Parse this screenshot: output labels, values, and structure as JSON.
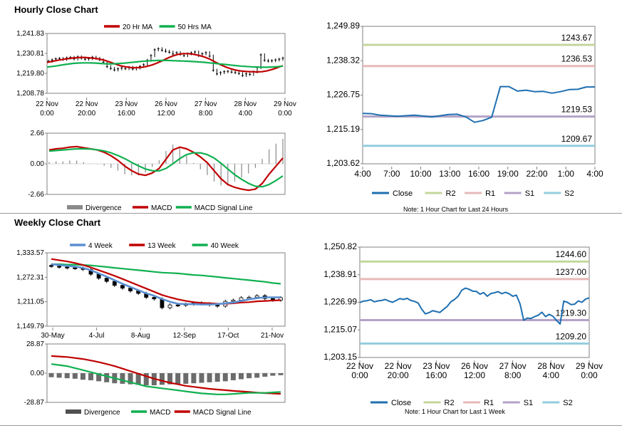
{
  "sections": {
    "hourly_title": "Hourly Close Chart",
    "weekly_title": "Weekly Close Chart"
  },
  "colors": {
    "red": "#c00000",
    "green": "#10b050",
    "blue": "#1f6fb0",
    "blue_light": "#5b8fd0",
    "gray_bar": "#8a8a8a",
    "r2": "#c3d69b",
    "r1": "#e6b9b8",
    "s1": "#b3a2c7",
    "s2": "#93cddd",
    "grid": "#d9d9d9",
    "axis": "#808080"
  },
  "chart_data": [
    {
      "id": "hourly-price",
      "type": "line",
      "legend": [
        "20 Hr MA",
        "50 Hrs MA"
      ],
      "y_ticks": [
        "1,241.83",
        "1,230.81",
        "1,219.80",
        "1,208.78"
      ],
      "ylim": [
        1208.78,
        1241.83
      ],
      "x_ticks": [
        [
          "22 Nov",
          "0:00"
        ],
        [
          "22 Nov",
          "20:00"
        ],
        [
          "23 Nov",
          "16:00"
        ],
        [
          "26 Nov",
          "12:00"
        ],
        [
          "27 Nov",
          "8:00"
        ],
        [
          "28 Nov",
          "4:00"
        ],
        [
          "29 Nov",
          "0:00"
        ]
      ],
      "close": [
        1226.5,
        1227.2,
        1227.8,
        1228.0,
        1227.5,
        1228.3,
        1228.6,
        1227.8,
        1228.9,
        1228.2,
        1227.6,
        1227.9,
        1228.7,
        1228.1,
        1227.3,
        1226.0,
        1223.5,
        1222.5,
        1221.7,
        1222.3,
        1222.8,
        1222.4,
        1223.1,
        1222.2,
        1222.8,
        1223.6,
        1224.6,
        1227.0,
        1229.6,
        1232.8,
        1233.4,
        1232.6,
        1232.0,
        1231.5,
        1230.5,
        1231.2,
        1230.3,
        1229.6,
        1230.6,
        1231.1,
        1231.6,
        1229.6,
        1230.6,
        1231.2,
        1229.3,
        1221.5,
        1219.5,
        1220.2,
        1220.7,
        1220.9,
        1220.5,
        1220.2,
        1219.7,
        1218.6,
        1219.5,
        1219.2,
        1220.6,
        1223.0,
        1230.0,
        1227.0,
        1226.6,
        1226.8,
        1227.2,
        1227.6,
        1228.2
      ],
      "ma20": [
        1225.8,
        1226.4,
        1227.0,
        1227.5,
        1227.9,
        1228.3,
        1228.5,
        1228.6,
        1228.4,
        1228.1,
        1227.7,
        1227.0,
        1226.0,
        1225.0,
        1224.0,
        1223.4,
        1223.0,
        1222.9,
        1223.1,
        1223.6,
        1224.4,
        1225.5,
        1226.8,
        1228.2,
        1229.4,
        1230.3,
        1230.7,
        1230.7,
        1230.3,
        1229.7,
        1228.9,
        1227.7,
        1226.2,
        1224.7,
        1223.4,
        1222.4,
        1221.6,
        1221.1,
        1220.8,
        1220.7,
        1220.6,
        1220.7,
        1221.2,
        1222.0,
        1223.0,
        1224.1
      ],
      "ma50": [
        1223.3,
        1223.6,
        1224.0,
        1224.5,
        1224.9,
        1225.3,
        1225.5,
        1225.6,
        1225.6,
        1225.5,
        1225.3,
        1225.1,
        1225.0,
        1225.1,
        1225.3,
        1225.5,
        1225.8,
        1226.1,
        1226.4,
        1226.6,
        1226.8,
        1226.9,
        1226.9,
        1226.9,
        1226.8,
        1226.7,
        1226.6,
        1226.5,
        1226.3,
        1226.1,
        1225.9,
        1225.6,
        1225.3,
        1225.0,
        1224.7,
        1224.4,
        1224.1,
        1223.8,
        1223.6,
        1223.4,
        1223.3,
        1223.2,
        1223.2,
        1223.3,
        1223.5,
        1223.8
      ]
    },
    {
      "id": "hourly-macd",
      "type": "bar",
      "legend": [
        "Divergence",
        "MACD",
        "MACD Signal Line"
      ],
      "y_ticks": [
        "2.66",
        "0.00",
        "-2.66"
      ],
      "ylim": [
        -2.66,
        2.66
      ],
      "macd": [
        1.2,
        1.3,
        1.35,
        1.45,
        1.5,
        1.4,
        1.3,
        1.2,
        1.0,
        0.7,
        0.3,
        -0.2,
        -0.6,
        -0.9,
        -1.0,
        -0.8,
        -0.4,
        0.4,
        1.2,
        1.45,
        1.3,
        1.0,
        0.6,
        0.1,
        -0.6,
        -1.3,
        -1.8,
        -2.05,
        -2.2,
        -2.3,
        -2.2,
        -1.7,
        -0.9,
        -0.2,
        0.5
      ],
      "signal": [
        1.1,
        1.15,
        1.2,
        1.25,
        1.3,
        1.3,
        1.28,
        1.22,
        1.12,
        0.95,
        0.72,
        0.45,
        0.12,
        -0.18,
        -0.45,
        -0.6,
        -0.62,
        -0.4,
        0.0,
        0.45,
        0.8,
        0.95,
        0.95,
        0.8,
        0.5,
        0.05,
        -0.45,
        -0.95,
        -1.35,
        -1.7,
        -1.95,
        -2.0,
        -1.8,
        -1.45,
        -1.05
      ]
    },
    {
      "id": "hourly-pivot",
      "type": "line",
      "y_ticks": [
        "1,249.89",
        "1,238.32",
        "1,226.75",
        "1,215.19",
        "1,203.62"
      ],
      "ylim": [
        1203.62,
        1249.89
      ],
      "x_ticks": [
        "4:00",
        "7:00",
        "10:00",
        "13:00",
        "16:00",
        "19:00",
        "22:00",
        "1:00",
        "4:00"
      ],
      "levels": [
        {
          "name": "R2",
          "value": 1243.67,
          "label": "1243.67"
        },
        {
          "name": "R1",
          "value": 1236.53,
          "label": "1236.53"
        },
        {
          "name": "S1",
          "value": 1219.53,
          "label": "1219.53"
        },
        {
          "name": "S2",
          "value": 1209.67,
          "label": "1209.67"
        }
      ],
      "close": [
        1220.6,
        1220.5,
        1220.0,
        1219.8,
        1219.6,
        1219.8,
        1220.0,
        1219.7,
        1219.4,
        1219.8,
        1220.2,
        1220.3,
        1219.4,
        1217.6,
        1218.2,
        1219.3,
        1229.6,
        1229.6,
        1228.1,
        1228.4,
        1227.9,
        1228.0,
        1227.4,
        1227.9,
        1228.6,
        1228.7,
        1229.5,
        1229.5
      ],
      "legend": [
        "Close",
        "R2",
        "R1",
        "S1",
        "S2"
      ],
      "note": "Note: 1 Hour Chart for Last 24 Hours"
    },
    {
      "id": "weekly-price",
      "type": "line",
      "legend": [
        "4 Week",
        "13 Week",
        "40 Week"
      ],
      "y_ticks": [
        "1,333.57",
        "1,272.31",
        "1,211.05",
        "1,149.79"
      ],
      "ylim": [
        1149.79,
        1333.57
      ],
      "x_ticks": [
        "30-May",
        "4-Jul",
        "8-Aug",
        "12-Sep",
        "17-Oct",
        "21-Nov"
      ],
      "close": [
        1300,
        1298,
        1296,
        1295,
        1292,
        1280,
        1270,
        1262,
        1252,
        1245,
        1238,
        1232,
        1222,
        1218,
        1196,
        1203,
        1202,
        1205,
        1208,
        1206,
        1203,
        1200,
        1212,
        1215,
        1221,
        1222,
        1226,
        1219,
        1215,
        1221
      ],
      "ma4": [
        1305,
        1303,
        1301,
        1299,
        1296,
        1290,
        1282,
        1274,
        1265,
        1256,
        1248,
        1240,
        1232,
        1226,
        1218,
        1211,
        1206,
        1205,
        1205,
        1204,
        1204,
        1205,
        1207,
        1209,
        1213,
        1217,
        1220,
        1222,
        1222,
        1222
      ],
      "ma13": [
        1318,
        1315,
        1312,
        1308,
        1303,
        1297,
        1290,
        1283,
        1276,
        1268,
        1260,
        1252,
        1244,
        1236,
        1228,
        1222,
        1217,
        1213,
        1210,
        1208,
        1207,
        1206,
        1206,
        1207,
        1209,
        1210,
        1212,
        1213,
        1214,
        1215
      ],
      "ma40": [
        1305,
        1305,
        1304,
        1304,
        1303,
        1302,
        1300,
        1298,
        1296,
        1294,
        1292,
        1290,
        1288,
        1286,
        1284,
        1283,
        1282,
        1280,
        1278,
        1277,
        1275,
        1273,
        1271,
        1269,
        1267,
        1265,
        1263,
        1261,
        1258,
        1256
      ]
    },
    {
      "id": "weekly-macd",
      "type": "bar",
      "legend": [
        "Divergence",
        "MACD",
        "MACD Signal Line"
      ],
      "y_ticks": [
        "28.87",
        "0.00",
        "-28.87"
      ],
      "ylim": [
        -28.87,
        28.87
      ],
      "macd": [
        9,
        8,
        7,
        5,
        3,
        1,
        -1,
        -3,
        -5,
        -7,
        -9,
        -11,
        -13,
        -14,
        -15,
        -16,
        -17,
        -18,
        -19,
        -20,
        -20.5,
        -21,
        -21,
        -20.5,
        -20,
        -19.5,
        -19.5,
        -19.5,
        -19,
        -18.5
      ],
      "signal": [
        17,
        16.5,
        16,
        15,
        14,
        12.5,
        11,
        9,
        7,
        4.5,
        2,
        -0.5,
        -3,
        -5.5,
        -7.5,
        -9.5,
        -11,
        -12.5,
        -13.5,
        -14.5,
        -15.5,
        -16.2,
        -16.8,
        -17.5,
        -18,
        -18.6,
        -19.2,
        -19.7,
        -20.1,
        -20.4
      ],
      "divergence": [
        -4,
        -4.5,
        -5,
        -5.5,
        -6.5,
        -7,
        -8,
        -9,
        -10,
        -10.5,
        -11,
        -11.5,
        -12,
        -12,
        -11.5,
        -11,
        -11,
        -10.5,
        -10,
        -9.5,
        -9,
        -8.5,
        -8,
        -7,
        -6,
        -5,
        -4.5,
        -3.5,
        -2.5,
        -2
      ]
    },
    {
      "id": "weekly-pivot",
      "type": "line",
      "y_ticks": [
        "1,250.82",
        "1,238.91",
        "1,226.99",
        "1,215.07",
        "1,203.15"
      ],
      "ylim": [
        1203.15,
        1250.82
      ],
      "x_ticks": [
        [
          "22 Nov",
          "0:00"
        ],
        [
          "22 Nov",
          "20:00"
        ],
        [
          "23 Nov",
          "16:00"
        ],
        [
          "26 Nov",
          "12:00"
        ],
        [
          "27 Nov",
          "8:00"
        ],
        [
          "28 Nov",
          "4:00"
        ],
        [
          "29 Nov",
          "0:00"
        ]
      ],
      "levels": [
        {
          "name": "R2",
          "value": 1244.6,
          "label": "1244.60"
        },
        {
          "name": "R1",
          "value": 1237.0,
          "label": "1237.00"
        },
        {
          "name": "S1",
          "value": 1219.3,
          "label": "1219.30"
        },
        {
          "name": "S2",
          "value": 1209.2,
          "label": "1209.20"
        }
      ],
      "close": [
        1226.9,
        1227.5,
        1227.7,
        1228.1,
        1227.2,
        1227.6,
        1227.8,
        1228.2,
        1227.5,
        1227.0,
        1227.8,
        1228.6,
        1228.2,
        1228.7,
        1227.8,
        1227.4,
        1226.7,
        1224.0,
        1222.0,
        1222.5,
        1223.4,
        1223.0,
        1222.6,
        1224.0,
        1225.2,
        1227.2,
        1228.2,
        1229.6,
        1232.2,
        1233.1,
        1232.6,
        1231.8,
        1231.7,
        1230.5,
        1231.2,
        1229.6,
        1230.8,
        1231.1,
        1231.6,
        1230.7,
        1231.3,
        1230.7,
        1229.6,
        1230.1,
        1226.3,
        1219.3,
        1220.2,
        1220.0,
        1220.8,
        1221.4,
        1222.7,
        1220.8,
        1221.8,
        1221.0,
        1219.2,
        1217.6,
        1227.5,
        1227.0,
        1226.0,
        1226.2,
        1227.6,
        1227.0,
        1228.4,
        1228.9
      ],
      "legend": [
        "Close",
        "R2",
        "R1",
        "S1",
        "S2"
      ],
      "note": "Note: 1 Hour Chart for Last 1 Week"
    }
  ]
}
